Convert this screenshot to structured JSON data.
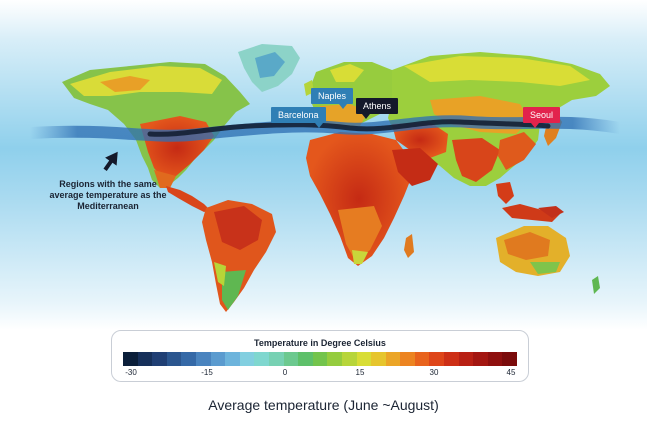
{
  "map": {
    "labels": {
      "barcelona": "Barcelona",
      "naples": "Naples",
      "athens": "Athens",
      "seoul": "Seoul"
    },
    "annotation": "Regions with the same average temperature as the Mediterranean",
    "icons": [
      "arrow-up-right-icon"
    ]
  },
  "legend": {
    "title": "Temperature in Degree Celsius",
    "ticks": [
      "-30",
      "-15",
      "0",
      "15",
      "30",
      "45"
    ],
    "colors": [
      "#0b1f3a",
      "#16305a",
      "#203f74",
      "#2b568f",
      "#3569a7",
      "#4a84bf",
      "#5b9bcf",
      "#6db4dc",
      "#82cfe0",
      "#7fd7cf",
      "#77d1b3",
      "#6cc98f",
      "#5ec06a",
      "#73c44c",
      "#95cc3e",
      "#b7d53a",
      "#d8dd36",
      "#e6c52d",
      "#eba527",
      "#ec8421",
      "#e8631d",
      "#de4519",
      "#cd2f16",
      "#b82014",
      "#a31611",
      "#8e0f0e",
      "#7a0b0b"
    ]
  },
  "caption": "Average temperature (June ~August)"
}
